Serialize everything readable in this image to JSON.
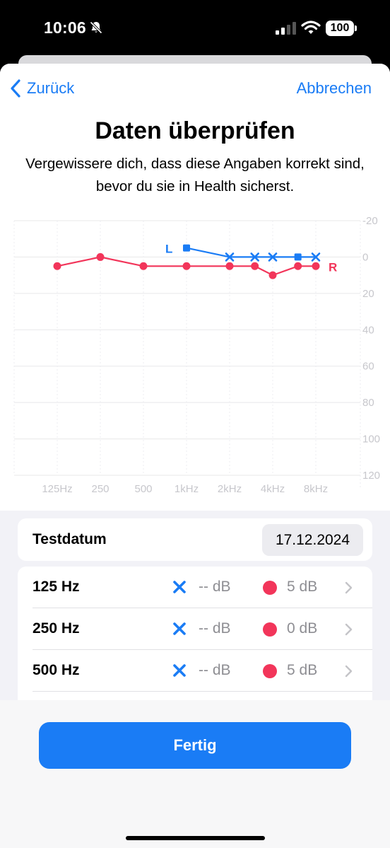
{
  "status_bar": {
    "time": "10:06",
    "battery": "100"
  },
  "nav": {
    "back_label": "Zurück",
    "cancel_label": "Abbrechen"
  },
  "title": "Daten überprüfen",
  "subtitle": "Vergewissere dich, dass diese Angaben korrekt sind, bevor du sie in Health sicherst.",
  "colors": {
    "accent": "#1a7cf5",
    "left_ear": "#1a7cf5",
    "right_ear": "#f2355a"
  },
  "chart_data": {
    "type": "line",
    "x": [
      "125Hz",
      "250",
      "500",
      "1kHz",
      "2kHz",
      "4kHz",
      "8kHz"
    ],
    "y_ticks": [
      "-20",
      "0",
      "20",
      "40",
      "60",
      "80",
      "100",
      "120"
    ],
    "ylim": [
      -20,
      120
    ],
    "y_inverted": true,
    "grid": true,
    "series": [
      {
        "name": "L",
        "color": "#1a7cf5",
        "points": [
          {
            "freq": 1000,
            "value": -5,
            "marker": "square"
          },
          {
            "freq": 2000,
            "value": 0,
            "marker": "x"
          },
          {
            "freq": 3000,
            "value": 0,
            "marker": "x"
          },
          {
            "freq": 4000,
            "value": 0,
            "marker": "x"
          },
          {
            "freq": 6000,
            "value": 0,
            "marker": "square"
          },
          {
            "freq": 8000,
            "value": 0,
            "marker": "x"
          }
        ]
      },
      {
        "name": "R",
        "color": "#f2355a",
        "points": [
          {
            "freq": 125,
            "value": 5,
            "marker": "dot"
          },
          {
            "freq": 250,
            "value": 0,
            "marker": "dot"
          },
          {
            "freq": 500,
            "value": 5,
            "marker": "dot"
          },
          {
            "freq": 1000,
            "value": 5,
            "marker": "dot"
          },
          {
            "freq": 2000,
            "value": 5,
            "marker": "dot"
          },
          {
            "freq": 3000,
            "value": 5,
            "marker": "dot"
          },
          {
            "freq": 4000,
            "value": 10,
            "marker": "dot"
          },
          {
            "freq": 6000,
            "value": 5,
            "marker": "dot"
          },
          {
            "freq": 8000,
            "value": 5,
            "marker": "dot"
          }
        ]
      }
    ]
  },
  "test_date": {
    "label": "Testdatum",
    "value": "17.12.2024"
  },
  "frequencies": [
    {
      "label": "125 Hz",
      "left": "-- dB",
      "right": "5 dB"
    },
    {
      "label": "250 Hz",
      "left": "-- dB",
      "right": "0 dB"
    },
    {
      "label": "500 Hz",
      "left": "-- dB",
      "right": "5 dB"
    }
  ],
  "done_label": "Fertig"
}
